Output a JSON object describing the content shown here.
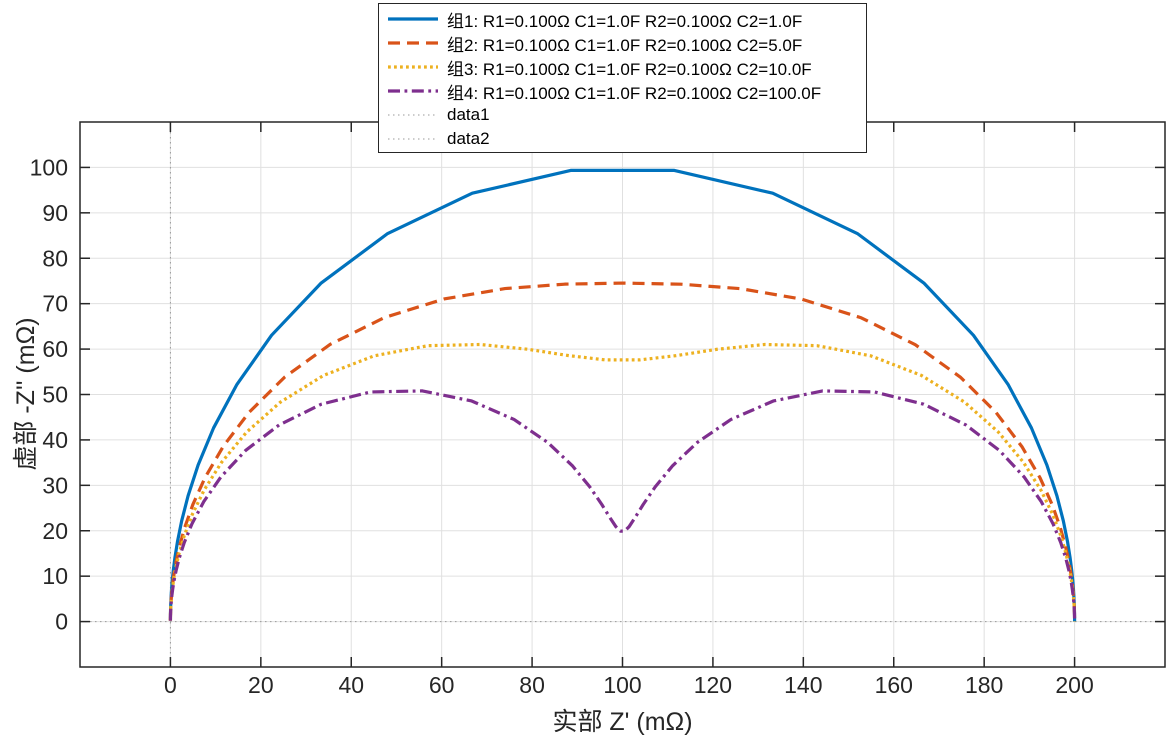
{
  "chart_data": {
    "type": "line",
    "subtype": "nyquist-impedance",
    "title": "",
    "xlabel": "实部 Z' (mΩ)",
    "ylabel": "虚部 -Z'' (mΩ)",
    "xlim": [
      -20,
      220
    ],
    "ylim": [
      -10,
      110
    ],
    "xticks": [
      0,
      20,
      40,
      60,
      80,
      100,
      120,
      140,
      160,
      180,
      200
    ],
    "yticks": [
      0,
      10,
      20,
      30,
      40,
      50,
      60,
      70,
      80,
      90,
      100
    ],
    "grid": true,
    "axis_color": "#262626",
    "grid_color": "#e0e0e0",
    "legend_position": "top-center",
    "frequency_sweep": {
      "log10_omega_min": -3.75,
      "log10_omega_max": 3.75,
      "points_per_decade": 10
    },
    "series": [
      {
        "name": "组1: R1=0.100Ω C1=1.0F R2=0.100Ω C2=1.0F",
        "color": "#0072BD",
        "style": "solid",
        "line_width": 3.2,
        "R1_ohm": 0.1,
        "C1_F": 1.0,
        "R2_ohm": 0.1,
        "C2_F": 1.0,
        "key_points": [
          [
            0,
            0
          ],
          [
            100,
            99.5
          ],
          [
            200,
            0.5
          ]
        ]
      },
      {
        "name": "组2: R1=0.100Ω C1=1.0F R2=0.100Ω C2=5.0F",
        "color": "#D95319",
        "style": "dashed",
        "line_width": 3.2,
        "R1_ohm": 0.1,
        "C1_F": 1.0,
        "R2_ohm": 0.1,
        "C2_F": 5.0,
        "key_points": [
          [
            0,
            0
          ],
          [
            100,
            74.5
          ],
          [
            200,
            0.5
          ]
        ]
      },
      {
        "name": "组3: R1=0.100Ω C1=1.0F R2=0.100Ω C2=10.0F",
        "color": "#EDB120",
        "style": "dotted",
        "line_width": 3.2,
        "R1_ohm": 0.1,
        "C1_F": 1.0,
        "R2_ohm": 0.1,
        "C2_F": 10.0,
        "key_points": [
          [
            0,
            0
          ],
          [
            60,
            61
          ],
          [
            100,
            57.5
          ],
          [
            140,
            61
          ],
          [
            200,
            0.5
          ]
        ]
      },
      {
        "name": "组4: R1=0.100Ω C1=1.0F R2=0.100Ω C2=100.0F",
        "color": "#7E2F8E",
        "style": "dashdot",
        "line_width": 3.2,
        "R1_ohm": 0.1,
        "C1_F": 1.0,
        "R2_ohm": 0.1,
        "C2_F": 100.0,
        "key_points": [
          [
            0,
            0
          ],
          [
            50,
            50.5
          ],
          [
            100,
            19.8
          ],
          [
            150,
            50.5
          ],
          [
            200,
            0.5
          ]
        ]
      }
    ],
    "reference_lines": [
      {
        "name": "data1",
        "orientation": "vertical",
        "x": 0,
        "color": "#999999",
        "style": "dotted",
        "line_width": 1
      },
      {
        "name": "data2",
        "orientation": "horizontal",
        "y": 0,
        "color": "#999999",
        "style": "dotted",
        "line_width": 1
      }
    ]
  }
}
